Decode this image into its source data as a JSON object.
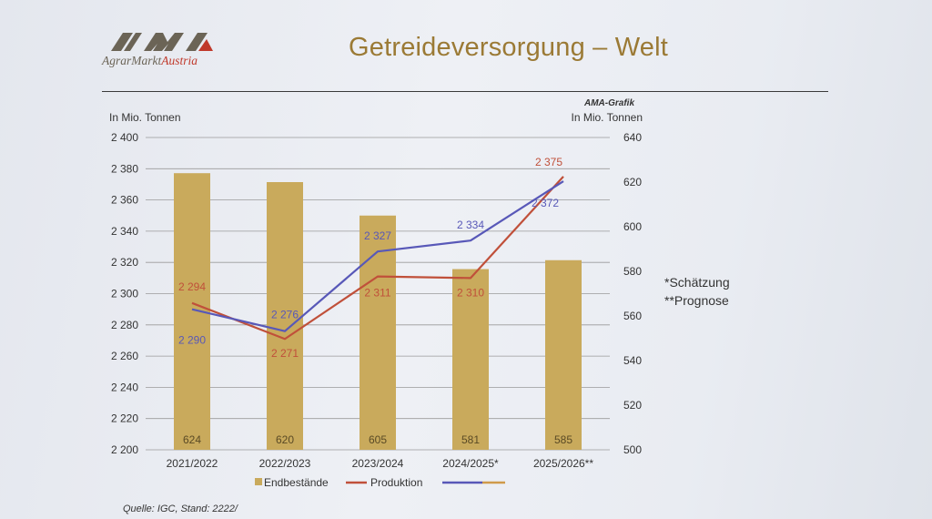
{
  "logo": {
    "mark": "AMA",
    "name_part1": "AgrarMarkt",
    "name_part2": "Austria"
  },
  "title": "Getreideversorgung – Welt",
  "credit": "AMA-Grafik",
  "notes": {
    "estimate": "*Schätzung",
    "forecast": "**Prognose"
  },
  "source": "Quelle: IGC, Stand: 2222/",
  "colors": {
    "bars": "#c9aa5c",
    "production": "#c0503a",
    "consumption": "#5858b8",
    "title": "#9b7a35"
  },
  "chart_data": {
    "type": "bar",
    "categories": [
      "2021/2022",
      "2022/2023",
      "2023/2024",
      "2024/2025*",
      "2025/2026**"
    ],
    "y_left": {
      "label": "In Mio. Tonnen",
      "range": [
        2200,
        2400
      ],
      "ticks": [
        2200,
        2220,
        2240,
        2260,
        2280,
        2300,
        2320,
        2340,
        2360,
        2380,
        2400
      ]
    },
    "y_right": {
      "label": "In Mio. Tonnen",
      "range": [
        500,
        640
      ],
      "ticks": [
        500,
        520,
        540,
        560,
        580,
        600,
        620,
        640
      ]
    },
    "grid": true,
    "legend_position": "bottom",
    "series": [
      {
        "name": "Endbestände",
        "type": "bar",
        "axis": "right",
        "values": [
          624,
          620,
          605,
          581,
          585
        ],
        "labels": [
          "624",
          "620",
          "605",
          "581",
          "585"
        ]
      },
      {
        "name": "Produktion",
        "type": "line",
        "axis": "left",
        "values": [
          2294,
          2271,
          2311,
          2310,
          2375
        ],
        "labels": [
          "2 294",
          "2 271",
          "2 311",
          "2 310",
          "2 375"
        ]
      },
      {
        "name": "",
        "type": "line",
        "axis": "left",
        "values": [
          2290,
          2276,
          2327,
          2334,
          2372
        ],
        "labels": [
          "2 290",
          "2 276",
          "2 327",
          "2 334",
          "2 372"
        ]
      }
    ]
  }
}
